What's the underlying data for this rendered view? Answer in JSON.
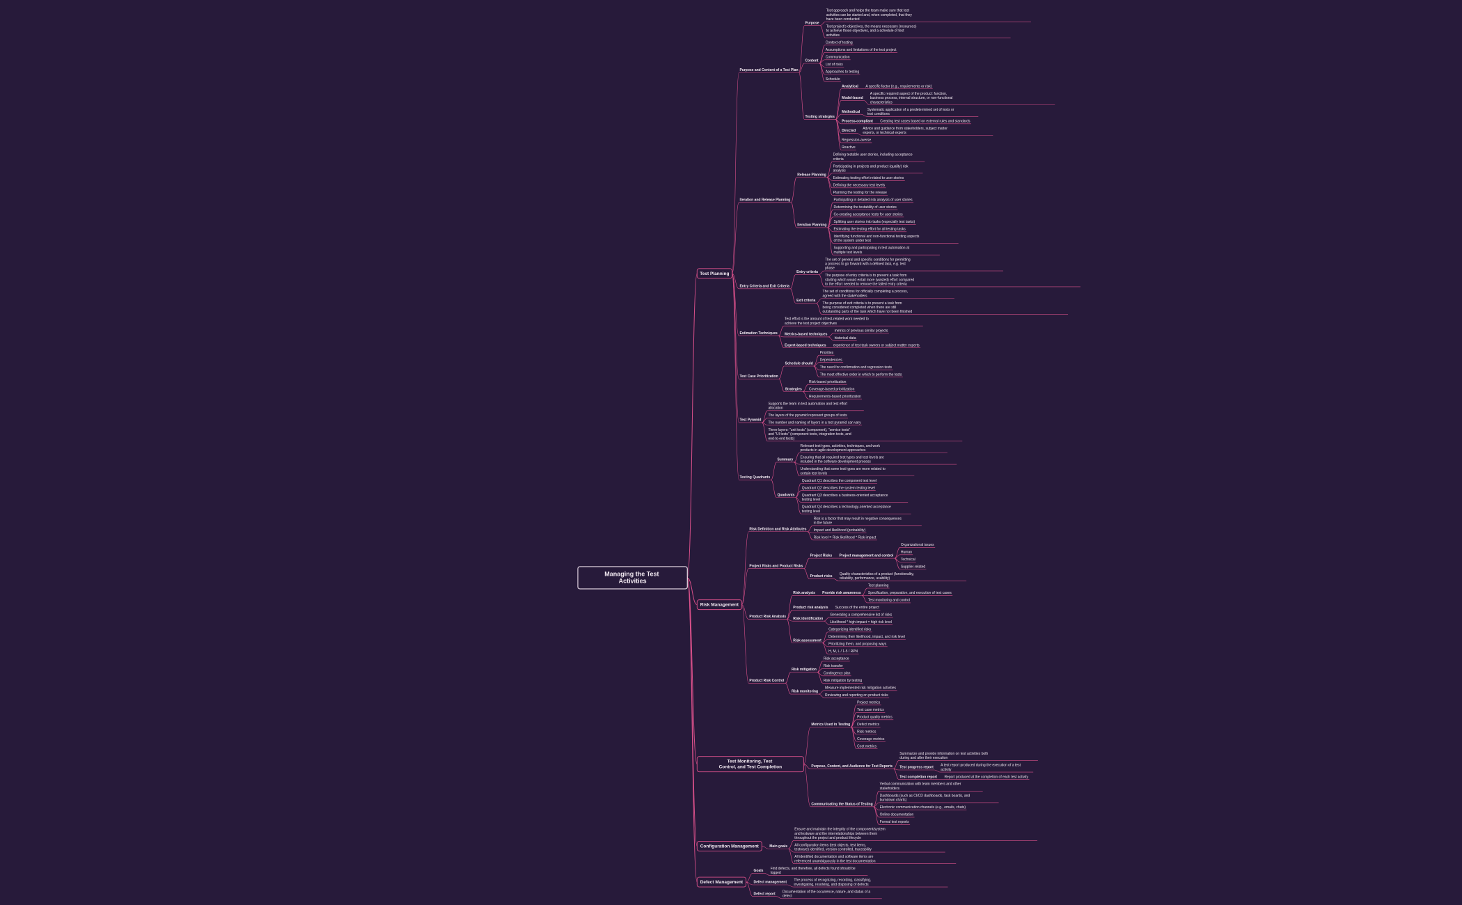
{
  "tree": {
    "label": "Managing the Test Activities",
    "children": [
      {
        "label": "Test Planning",
        "children": [
          {
            "label": "Purpose and Content of a Test Plan",
            "children": [
              {
                "label": "Purpose",
                "children": [
                  {
                    "label": "Test approach and helps the team make sure that test activities can be started and, when completed, that they have been conducted"
                  },
                  {
                    "label": "Test project's objectives, the means necessary (resources) to achieve those objectives, and a schedule of test activities"
                  }
                ]
              },
              {
                "label": "Content",
                "children": [
                  {
                    "label": "Context of testing"
                  },
                  {
                    "label": "Assumptions and limitations of the test project"
                  },
                  {
                    "label": "Communication"
                  },
                  {
                    "label": "List of risks"
                  },
                  {
                    "label": "Approaches to testing"
                  },
                  {
                    "label": "Schedule"
                  }
                ]
              },
              {
                "label": "Testing strategies",
                "children": [
                  {
                    "label": "Analytical",
                    "children": [
                      {
                        "label": "A specific factor (e.g., requirements or risk)"
                      }
                    ]
                  },
                  {
                    "label": "Model-based",
                    "children": [
                      {
                        "label": "A specific required aspect of the product: function, business process, internal structure, or non-functional characteristics"
                      }
                    ]
                  },
                  {
                    "label": "Methodical",
                    "children": [
                      {
                        "label": "Systematic application of a predetermined set of tests or test conditions"
                      }
                    ]
                  },
                  {
                    "label": "Process-compliant",
                    "children": [
                      {
                        "label": "Creating test cases based on external rules and standards"
                      }
                    ]
                  },
                  {
                    "label": "Directed",
                    "children": [
                      {
                        "label": "Advice and guidance from stakeholders, subject matter experts, or technical experts"
                      }
                    ]
                  },
                  {
                    "label": "Regression-averse"
                  },
                  {
                    "label": "Reactive"
                  }
                ]
              }
            ]
          },
          {
            "label": "Iteration and Release Planning",
            "children": [
              {
                "label": "Release Planning",
                "children": [
                  {
                    "label": "Defining testable user stories, including acceptance criteria"
                  },
                  {
                    "label": "Participating in projects and product (quality) risk analysis"
                  },
                  {
                    "label": "Estimating testing effort related to user stories"
                  },
                  {
                    "label": "Defining the necessary test levels"
                  },
                  {
                    "label": "Planning the testing for the release"
                  }
                ]
              },
              {
                "label": "Iteration Planning",
                "children": [
                  {
                    "label": "Participating in detailed risk analysis of user stories"
                  },
                  {
                    "label": "Determining the testability of user stories"
                  },
                  {
                    "label": "Co-creating acceptance tests for user stories"
                  },
                  {
                    "label": "Splitting user stories into tasks (especially test tasks)"
                  },
                  {
                    "label": "Estimating the testing effort for all testing tasks"
                  },
                  {
                    "label": "Identifying functional and non-functional testing aspects of the system under test"
                  },
                  {
                    "label": "Supporting and participating in test automation at multiple test levels"
                  }
                ]
              }
            ]
          },
          {
            "label": "Entry Criteria and Exit Criteria",
            "children": [
              {
                "label": "Entry criteria",
                "children": [
                  {
                    "label": "The set of general and specific conditions for permitting a process to go forward with a defined task, e.g. test phase"
                  },
                  {
                    "label": "The purpose of entry criteria is to prevent a task from starting which would entail more (wasted) effort compared to the effort needed to remove the failed entry criteria"
                  }
                ]
              },
              {
                "label": "Exit criteria",
                "children": [
                  {
                    "label": "The set of conditions for officially completing a process, agreed with the stakeholders"
                  },
                  {
                    "label": "The purpose of exit criteria is to prevent a task from being considered completed when there are still outstanding parts of the task which have not been finished"
                  }
                ]
              }
            ]
          },
          {
            "label": "Estimation Techniques",
            "children": [
              {
                "label": "Test effort is the amount of test-related work needed to achieve the test project objectives"
              },
              {
                "label": "Metrics-based techniques",
                "children": [
                  {
                    "label": "metrics of previous similar projects"
                  },
                  {
                    "label": "historical data"
                  }
                ]
              },
              {
                "label": "Expert-based techniques",
                "children": [
                  {
                    "label": "experience of test task owners or subject matter experts"
                  }
                ]
              }
            ]
          },
          {
            "label": "Test Case Prioritization",
            "children": [
              {
                "label": "Schedule should",
                "children": [
                  {
                    "label": "Priorities"
                  },
                  {
                    "label": "Dependencies"
                  },
                  {
                    "label": "The need for confirmation and regression tests"
                  },
                  {
                    "label": "The most effective order in which to perform the tests"
                  }
                ]
              },
              {
                "label": "Strategies",
                "children": [
                  {
                    "label": "Risk-based prioritization"
                  },
                  {
                    "label": "Coverage-based prioritization"
                  },
                  {
                    "label": "Requirements-based prioritization"
                  }
                ]
              }
            ]
          },
          {
            "label": "Test Pyramid",
            "children": [
              {
                "label": "Supports the team in test automation and test effort allocation"
              },
              {
                "label": "The layers of the pyramid represent groups of tests"
              },
              {
                "label": "The number and naming of layers in a test pyramid can vary"
              },
              {
                "label": "Three layers: \"unit tests\" (component), \"service tests\" and \"UI tests\" (component tests, integration tests, and end-to-end tests)"
              }
            ]
          },
          {
            "label": "Testing Quadrants",
            "children": [
              {
                "label": "Summary",
                "children": [
                  {
                    "label": "Relevant test types, activities, techniques, and work products in agile development approaches"
                  },
                  {
                    "label": "Ensuring that all required test types and test levels are included in the software development process"
                  },
                  {
                    "label": "Understanding that some test types are more related to certain test levels"
                  }
                ]
              },
              {
                "label": "Quadrants",
                "children": [
                  {
                    "label": "Quadrant Q1 describes the component test level"
                  },
                  {
                    "label": "Quadrant Q2 describes the system testing level"
                  },
                  {
                    "label": "Quadrant Q3 describes a business-oriented acceptance testing level"
                  },
                  {
                    "label": "Quadrant Q4 describes a technology-oriented acceptance testing level"
                  }
                ]
              }
            ]
          }
        ]
      },
      {
        "label": "Risk Management",
        "children": [
          {
            "label": "Risk Definition and Risk Attributes",
            "children": [
              {
                "label": "Risk is a factor that may result in negative consequences in the future"
              },
              {
                "label": "Impact and likelihood (probability)"
              },
              {
                "label": "Risk level = Risk likelihood * Risk impact"
              }
            ]
          },
          {
            "label": "Project Risks and Product Risks",
            "children": [
              {
                "label": "Project Risks",
                "children": [
                  {
                    "label": "Project management and control",
                    "children": [
                      {
                        "label": "Organizational issues"
                      },
                      {
                        "label": "Human"
                      },
                      {
                        "label": "Technical"
                      },
                      {
                        "label": "Supplier-related"
                      }
                    ]
                  }
                ]
              },
              {
                "label": "Product risks",
                "children": [
                  {
                    "label": "Quality characteristics of a product (functionality, reliability, performance, usability)"
                  }
                ]
              }
            ]
          },
          {
            "label": "Product Risk Analysis",
            "children": [
              {
                "label": "Risk analysis",
                "children": [
                  {
                    "label": "Provide risk awareness",
                    "children": [
                      {
                        "label": "Test planning"
                      },
                      {
                        "label": "Specification, preparation, and execution of test cases"
                      },
                      {
                        "label": "Test monitoring and control"
                      }
                    ]
                  }
                ]
              },
              {
                "label": "Product risk analysis",
                "children": [
                  {
                    "label": "Success of the entire project"
                  }
                ]
              },
              {
                "label": "Risk identification",
                "children": [
                  {
                    "label": "Generating a comprehensive list of risks"
                  },
                  {
                    "label": "Likelihood * high impact = high risk level"
                  }
                ]
              },
              {
                "label": "Risk assessment",
                "children": [
                  {
                    "label": "Categorizing identified risks"
                  },
                  {
                    "label": "Determining their likelihood, impact, and risk level"
                  },
                  {
                    "label": "Prioritizing them, and proposing ways"
                  },
                  {
                    "label": "H, M, L / 1-5 / RPN"
                  }
                ]
              }
            ]
          },
          {
            "label": "Product Risk Control",
            "children": [
              {
                "label": "Risk mitigation",
                "children": [
                  {
                    "label": "Risk acceptance"
                  },
                  {
                    "label": "Risk transfer"
                  },
                  {
                    "label": "Contingency plan"
                  },
                  {
                    "label": "Risk mitigation by testing"
                  }
                ]
              },
              {
                "label": "Risk monitoring",
                "children": [
                  {
                    "label": "Measure implemented risk mitigation activities"
                  },
                  {
                    "label": "Reviewing and reporting on product risks"
                  }
                ]
              }
            ]
          }
        ]
      },
      {
        "label": "Test Monitoring, Test Control, and Test Completion",
        "children": [
          {
            "label": "Metrics Used in Testing",
            "children": [
              {
                "label": "Project metrics"
              },
              {
                "label": "Test case metrics"
              },
              {
                "label": "Product quality metrics"
              },
              {
                "label": "Defect metrics"
              },
              {
                "label": "Risk metrics"
              },
              {
                "label": "Coverage metrics"
              },
              {
                "label": "Cost metrics"
              }
            ]
          },
          {
            "label": "Purpose, Content, and Audience for Test Reports",
            "children": [
              {
                "label": "Summarize and provide information on test activities both during and after their execution"
              },
              {
                "label": "Test progress report",
                "children": [
                  {
                    "label": "A test report produced during the execution of a test activity"
                  }
                ]
              },
              {
                "label": "Test completion report",
                "children": [
                  {
                    "label": "Report produced at the completion of each test activity"
                  }
                ]
              }
            ]
          },
          {
            "label": "Communicating the Status of Testing",
            "children": [
              {
                "label": "Verbal communication with team members and other stakeholders"
              },
              {
                "label": "Dashboards (such as CI/CD dashboards, task boards, and burndown charts)"
              },
              {
                "label": "Electronic communication channels (e.g., emails, chats)"
              },
              {
                "label": "Online documentation"
              },
              {
                "label": "Formal test reports"
              }
            ]
          }
        ]
      },
      {
        "label": "Configuration Management",
        "children": [
          {
            "label": "Main goals",
            "children": [
              {
                "label": "Ensure and maintain the integrity of the component/system and testware and the interrelationships between them throughout the project and product lifecycle"
              },
              {
                "label": "All configuration items (test objects, test items, testware) identified, version controlled, traceability"
              },
              {
                "label": "All identified documentation and software items are referenced unambiguously in the test documentation"
              }
            ]
          }
        ]
      },
      {
        "label": "Defect Management",
        "children": [
          {
            "label": "Goals",
            "children": [
              {
                "label": "Find defects, and therefore, all defects found should be logged"
              }
            ]
          },
          {
            "label": "Defect management",
            "children": [
              {
                "label": "The process of recognizing, recording, classifying, investigating, resolving, and disposing of defects"
              }
            ]
          },
          {
            "label": "Defect report",
            "children": [
              {
                "label": "Documentation of the occurrence, nature, and status of a defect"
              }
            ]
          }
        ]
      }
    ]
  }
}
